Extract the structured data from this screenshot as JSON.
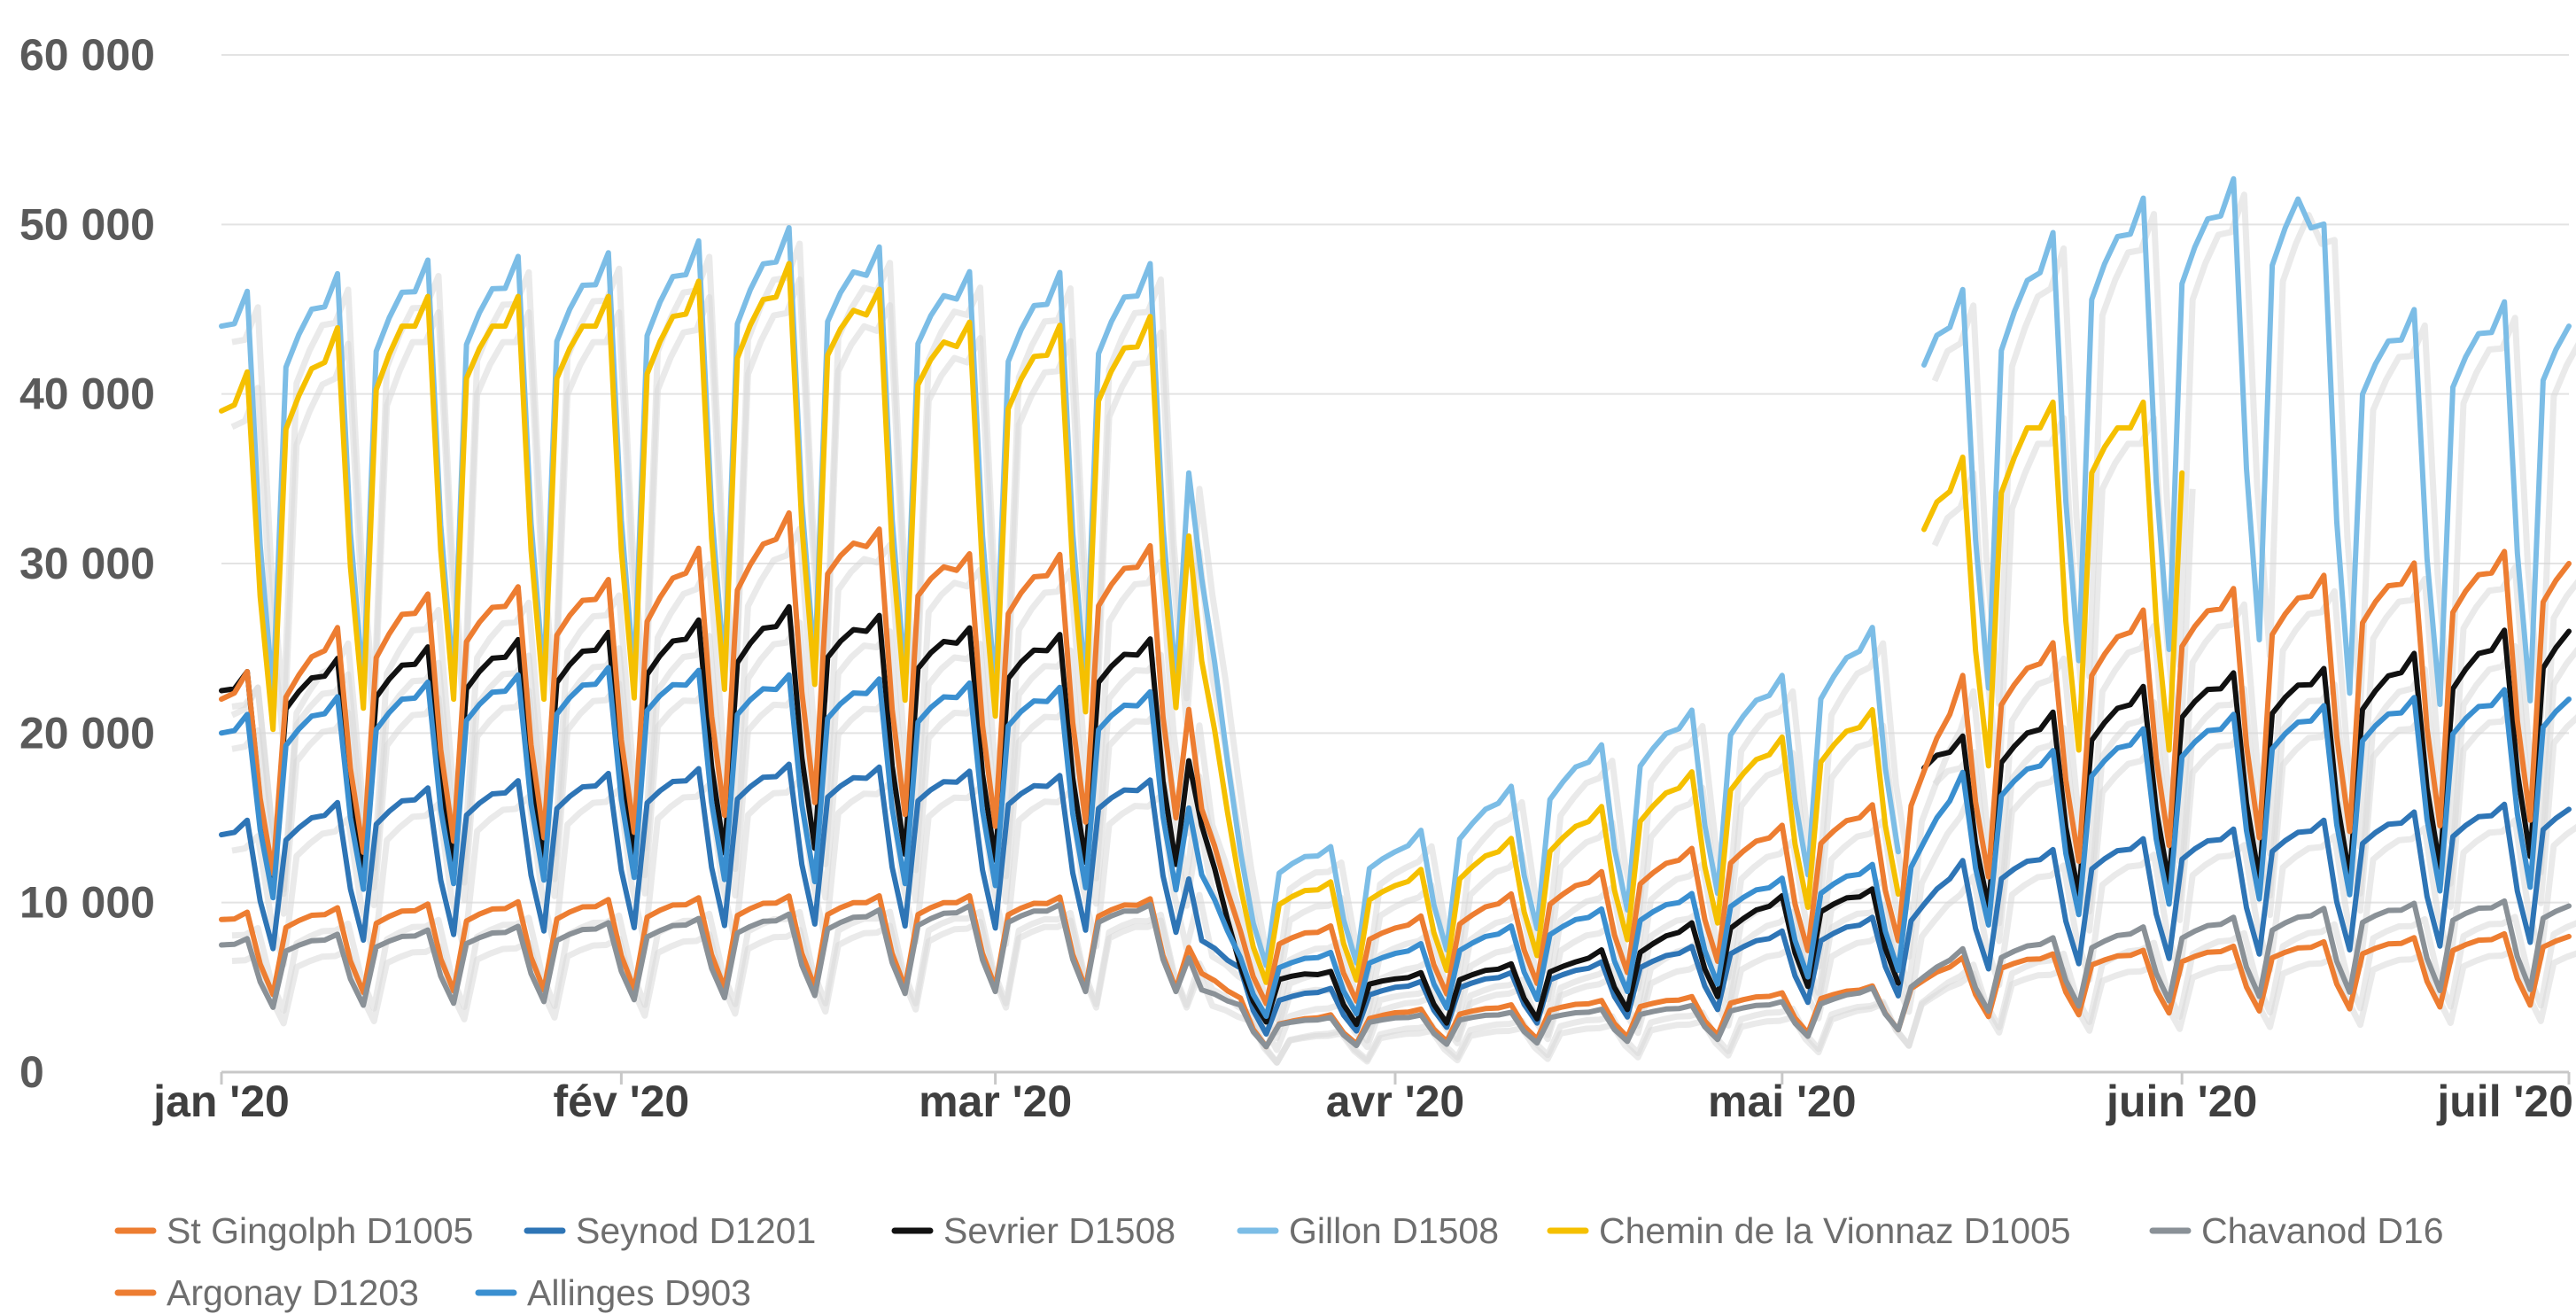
{
  "chart_data": {
    "type": "line",
    "title": "",
    "xlabel": "",
    "ylabel": "",
    "ylim": [
      0,
      60000
    ],
    "yticks": [
      0,
      10000,
      20000,
      30000,
      40000,
      50000,
      60000
    ],
    "ytick_labels": [
      "0",
      "10 000",
      "20 000",
      "30 000",
      "40 000",
      "50 000",
      "60 000"
    ],
    "x_range": [
      "2020-01-01",
      "2020-07-01"
    ],
    "x_tick_labels": [
      {
        "date": "2020-01-01",
        "label": "jan '20"
      },
      {
        "date": "2020-02-01",
        "label": "fév '20"
      },
      {
        "date": "2020-03-01",
        "label": "mar '20"
      },
      {
        "date": "2020-04-01",
        "label": "avr '20"
      },
      {
        "date": "2020-05-01",
        "label": "mai '20"
      },
      {
        "date": "2020-06-01",
        "label": "juin '20"
      },
      {
        "date": "2020-07-01",
        "label": "juil '20"
      }
    ],
    "grid": "horizontal",
    "legend": "bottom",
    "data_granularity": "daily, weekly pattern with weekend dips; values are approximate",
    "gap": [
      "2020-03-17",
      "2020-05-11"
    ],
    "gap_series": [
      "Sevrier D1508",
      "Gillon D1508",
      "Chemin de la Vionnaz D1005"
    ],
    "series": [
      {
        "name": "St Gingolph D1005",
        "color": "#ed7d31",
        "weekday": [
          [
            "2020-01-01",
            9000
          ],
          [
            "2020-01-15",
            9500
          ],
          [
            "2020-02-01",
            9800
          ],
          [
            "2020-02-15",
            10000
          ],
          [
            "2020-03-01",
            10000
          ],
          [
            "2020-03-15",
            9800
          ],
          [
            "2020-03-17",
            6000
          ],
          [
            "2020-03-22",
            3000
          ],
          [
            "2020-04-01",
            3500
          ],
          [
            "2020-04-15",
            4000
          ],
          [
            "2020-05-01",
            4500
          ],
          [
            "2020-05-10",
            5000
          ],
          [
            "2020-05-15",
            6500
          ],
          [
            "2020-06-01",
            7000
          ],
          [
            "2020-06-15",
            7500
          ],
          [
            "2020-07-01",
            8000
          ]
        ]
      },
      {
        "name": "Seynod D1201",
        "color": "#2e75b6",
        "weekday": [
          [
            "2020-01-01",
            14000
          ],
          [
            "2020-01-15",
            16000
          ],
          [
            "2020-02-01",
            17000
          ],
          [
            "2020-02-15",
            17500
          ],
          [
            "2020-03-01",
            17000
          ],
          [
            "2020-03-15",
            16500
          ],
          [
            "2020-03-17",
            8000
          ],
          [
            "2020-03-22",
            4500
          ],
          [
            "2020-04-01",
            5000
          ],
          [
            "2020-04-15",
            6000
          ],
          [
            "2020-05-01",
            8000
          ],
          [
            "2020-05-10",
            9000
          ],
          [
            "2020-05-15",
            12000
          ],
          [
            "2020-06-01",
            13500
          ],
          [
            "2020-06-15",
            14500
          ],
          [
            "2020-07-01",
            15500
          ]
        ]
      },
      {
        "name": "Sevrier D1508",
        "color": "#111111",
        "weekday": [
          [
            "2020-01-01",
            22500
          ],
          [
            "2020-01-15",
            24000
          ],
          [
            "2020-02-01",
            25000
          ],
          [
            "2020-02-15",
            26500
          ],
          [
            "2020-03-01",
            25000
          ],
          [
            "2020-03-15",
            24500
          ],
          [
            "2020-03-17",
            15000
          ],
          [
            "2020-03-20",
            6000
          ],
          [
            "2020-04-01",
            5500
          ],
          [
            "2020-04-15",
            6500
          ],
          [
            "2020-05-01",
            10000
          ],
          [
            "2020-05-10",
            10500
          ],
          [
            "2020-05-11",
            null
          ],
          [
            "2020-05-12",
            18500
          ],
          [
            "2020-05-20",
            20000
          ],
          [
            "2020-06-01",
            22500
          ],
          [
            "2020-06-15",
            23000
          ],
          [
            "2020-07-01",
            26000
          ]
        ]
      },
      {
        "name": "Gillon D1508",
        "color": "#7cbde6",
        "weekday": [
          [
            "2020-01-01",
            44000
          ],
          [
            "2020-01-15",
            46000
          ],
          [
            "2020-02-01",
            46500
          ],
          [
            "2020-02-15",
            48000
          ],
          [
            "2020-03-01",
            45000
          ],
          [
            "2020-03-15",
            46000
          ],
          [
            "2020-03-17",
            30000
          ],
          [
            "2020-03-20",
            12500
          ],
          [
            "2020-04-01",
            13000
          ],
          [
            "2020-04-15",
            18000
          ],
          [
            "2020-05-01",
            22500
          ],
          [
            "2020-05-10",
            26000
          ],
          [
            "2020-05-11",
            null
          ],
          [
            "2020-05-12",
            43000
          ],
          [
            "2020-05-25",
            49000
          ],
          [
            "2020-06-01",
            50000
          ],
          [
            "2020-06-10",
            51500
          ],
          [
            "2020-06-15",
            43000
          ],
          [
            "2020-07-01",
            44000
          ]
        ]
      },
      {
        "name": "Chemin de la Vionnaz D1005",
        "color": "#f5c000",
        "weekday": [
          [
            "2020-01-01",
            39000
          ],
          [
            "2020-01-15",
            44000
          ],
          [
            "2020-02-01",
            44000
          ],
          [
            "2020-02-15",
            46000
          ],
          [
            "2020-03-01",
            42000
          ],
          [
            "2020-03-15",
            43000
          ],
          [
            "2020-03-17",
            25000
          ],
          [
            "2020-03-20",
            10500
          ],
          [
            "2020-04-01",
            11000
          ],
          [
            "2020-04-15",
            14500
          ],
          [
            "2020-05-01",
            19000
          ],
          [
            "2020-05-10",
            21000
          ],
          [
            "2020-05-11",
            null
          ],
          [
            "2020-05-12",
            33000
          ],
          [
            "2020-05-20",
            38000
          ],
          [
            "2020-06-01",
            38000
          ]
        ]
      },
      {
        "name": "Chavanod D16",
        "color": "#8a9197",
        "weekday": [
          [
            "2020-01-01",
            7500
          ],
          [
            "2020-01-15",
            8000
          ],
          [
            "2020-02-01",
            8500
          ],
          [
            "2020-02-15",
            9000
          ],
          [
            "2020-03-01",
            9500
          ],
          [
            "2020-03-15",
            9500
          ],
          [
            "2020-03-17",
            5000
          ],
          [
            "2020-03-22",
            3000
          ],
          [
            "2020-04-01",
            3200
          ],
          [
            "2020-04-15",
            3500
          ],
          [
            "2020-05-01",
            4000
          ],
          [
            "2020-05-10",
            5000
          ],
          [
            "2020-05-15",
            7000
          ],
          [
            "2020-06-01",
            8500
          ],
          [
            "2020-06-15",
            9500
          ],
          [
            "2020-07-01",
            9800
          ]
        ]
      },
      {
        "name": "Argonay D1203",
        "color": "#ed7d31",
        "weekday": [
          [
            "2020-01-01",
            22000
          ],
          [
            "2020-01-15",
            27000
          ],
          [
            "2020-02-01",
            28000
          ],
          [
            "2020-02-15",
            32000
          ],
          [
            "2020-03-01",
            29000
          ],
          [
            "2020-03-15",
            30000
          ],
          [
            "2020-03-17",
            16000
          ],
          [
            "2020-03-20",
            8000
          ],
          [
            "2020-04-01",
            8500
          ],
          [
            "2020-04-15",
            11000
          ],
          [
            "2020-05-01",
            14000
          ],
          [
            "2020-05-10",
            15500
          ],
          [
            "2020-05-15",
            22500
          ],
          [
            "2020-06-01",
            27000
          ],
          [
            "2020-06-15",
            28500
          ],
          [
            "2020-07-01",
            30000
          ]
        ]
      },
      {
        "name": "Allinges D903",
        "color": "#3a8fd0",
        "weekday": [
          [
            "2020-01-01",
            20000
          ],
          [
            "2020-01-15",
            22000
          ],
          [
            "2020-02-01",
            23000
          ],
          [
            "2020-02-15",
            22500
          ],
          [
            "2020-03-01",
            22000
          ],
          [
            "2020-03-15",
            21500
          ],
          [
            "2020-03-17",
            12000
          ],
          [
            "2020-03-20",
            6500
          ],
          [
            "2020-04-01",
            7000
          ],
          [
            "2020-04-15",
            9000
          ],
          [
            "2020-05-01",
            11000
          ],
          [
            "2020-05-10",
            12000
          ],
          [
            "2020-05-15",
            17000
          ],
          [
            "2020-06-01",
            20000
          ],
          [
            "2020-06-15",
            21000
          ],
          [
            "2020-07-01",
            22000
          ]
        ]
      }
    ]
  }
}
